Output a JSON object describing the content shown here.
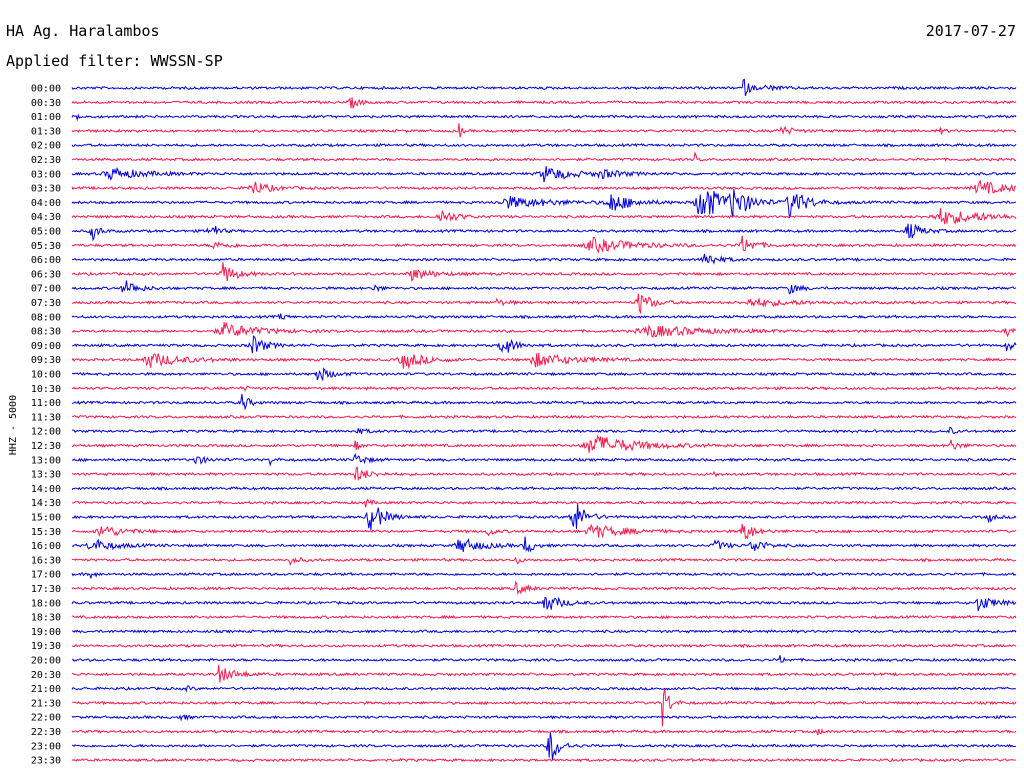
{
  "header": {
    "station": "HA Ag. Haralambos",
    "filter": "Applied filter: WWSSN-SP",
    "date": "2017-07-27"
  },
  "colors": {
    "blue": "#0000e6",
    "red": "#ff1a4d"
  },
  "chart_data": {
    "type": "line",
    "ylabel": "HHZ - 5000",
    "rows": [
      {
        "time": "00:00",
        "color": "blue",
        "events": [
          {
            "t": 0.71,
            "a": 12,
            "w": 0.006
          },
          {
            "t": 0.735,
            "a": 3,
            "w": 0.012
          }
        ]
      },
      {
        "time": "00:30",
        "color": "red",
        "events": [
          {
            "t": 0.295,
            "a": 7,
            "w": 0.007
          }
        ]
      },
      {
        "time": "01:00",
        "color": "blue",
        "events": [
          {
            "t": 0.005,
            "a": 3,
            "w": 0.004
          }
        ]
      },
      {
        "time": "01:30",
        "color": "red",
        "events": [
          {
            "t": 0.41,
            "a": 12,
            "w": 0.002
          },
          {
            "t": 0.75,
            "a": 5,
            "w": 0.012
          },
          {
            "t": 0.92,
            "a": 3,
            "w": 0.004
          }
        ]
      },
      {
        "time": "02:00",
        "color": "blue",
        "events": []
      },
      {
        "time": "02:30",
        "color": "red",
        "events": [
          {
            "t": 0.66,
            "a": 6,
            "w": 0.002
          },
          {
            "t": 0.44,
            "a": 3,
            "w": 0.002
          }
        ]
      },
      {
        "time": "03:00",
        "color": "blue",
        "events": [
          {
            "t": 0.04,
            "a": 6,
            "w": 0.03
          },
          {
            "t": 0.5,
            "a": 8,
            "w": 0.025
          },
          {
            "t": 0.56,
            "a": 4,
            "w": 0.02
          }
        ]
      },
      {
        "time": "03:30",
        "color": "red",
        "events": [
          {
            "t": 0.19,
            "a": 8,
            "w": 0.015
          },
          {
            "t": 0.96,
            "a": 7,
            "w": 0.03
          }
        ]
      },
      {
        "time": "04:00",
        "color": "blue",
        "events": [
          {
            "t": 0.46,
            "a": 6,
            "w": 0.04
          },
          {
            "t": 0.57,
            "a": 10,
            "w": 0.02
          },
          {
            "t": 0.665,
            "a": 22,
            "w": 0.02
          },
          {
            "t": 0.7,
            "a": 14,
            "w": 0.015
          },
          {
            "t": 0.76,
            "a": 16,
            "w": 0.015
          }
        ]
      },
      {
        "time": "04:30",
        "color": "red",
        "events": [
          {
            "t": 0.39,
            "a": 7,
            "w": 0.015
          },
          {
            "t": 0.92,
            "a": 8,
            "w": 0.04
          }
        ]
      },
      {
        "time": "05:00",
        "color": "blue",
        "events": [
          {
            "t": 0.02,
            "a": 12,
            "w": 0.006
          },
          {
            "t": 0.145,
            "a": 14,
            "w": 0.006
          },
          {
            "t": 0.885,
            "a": 10,
            "w": 0.012
          }
        ]
      },
      {
        "time": "05:30",
        "color": "red",
        "events": [
          {
            "t": 0.55,
            "a": 7,
            "w": 0.04
          },
          {
            "t": 0.71,
            "a": 9,
            "w": 0.012
          },
          {
            "t": 0.15,
            "a": 3,
            "w": 0.02
          }
        ]
      },
      {
        "time": "06:00",
        "color": "blue",
        "events": [
          {
            "t": 0.67,
            "a": 8,
            "w": 0.012
          }
        ]
      },
      {
        "time": "06:30",
        "color": "red",
        "events": [
          {
            "t": 0.16,
            "a": 11,
            "w": 0.012
          },
          {
            "t": 0.36,
            "a": 6,
            "w": 0.02
          }
        ]
      },
      {
        "time": "07:00",
        "color": "blue",
        "events": [
          {
            "t": 0.055,
            "a": 9,
            "w": 0.012
          },
          {
            "t": 0.32,
            "a": 4,
            "w": 0.006
          },
          {
            "t": 0.76,
            "a": 5,
            "w": 0.01
          }
        ]
      },
      {
        "time": "07:30",
        "color": "red",
        "events": [
          {
            "t": 0.6,
            "a": 12,
            "w": 0.012
          },
          {
            "t": 0.45,
            "a": 3,
            "w": 0.01
          },
          {
            "t": 0.72,
            "a": 4,
            "w": 0.04
          }
        ]
      },
      {
        "time": "08:00",
        "color": "blue",
        "events": [
          {
            "t": 0.22,
            "a": 4,
            "w": 0.005
          }
        ]
      },
      {
        "time": "08:30",
        "color": "red",
        "events": [
          {
            "t": 0.16,
            "a": 8,
            "w": 0.03
          },
          {
            "t": 0.61,
            "a": 6,
            "w": 0.05
          },
          {
            "t": 0.99,
            "a": 5,
            "w": 0.01
          }
        ]
      },
      {
        "time": "09:00",
        "color": "blue",
        "events": [
          {
            "t": 0.19,
            "a": 11,
            "w": 0.012
          },
          {
            "t": 0.455,
            "a": 13,
            "w": 0.01
          },
          {
            "t": 0.99,
            "a": 6,
            "w": 0.006
          }
        ]
      },
      {
        "time": "09:30",
        "color": "red",
        "events": [
          {
            "t": 0.08,
            "a": 8,
            "w": 0.03
          },
          {
            "t": 0.35,
            "a": 9,
            "w": 0.02
          },
          {
            "t": 0.49,
            "a": 7,
            "w": 0.035
          }
        ]
      },
      {
        "time": "10:00",
        "color": "blue",
        "events": [
          {
            "t": 0.26,
            "a": 8,
            "w": 0.012
          }
        ]
      },
      {
        "time": "10:30",
        "color": "red",
        "events": [
          {
            "t": 0.18,
            "a": 3,
            "w": 0.005
          }
        ]
      },
      {
        "time": "11:00",
        "color": "blue",
        "events": [
          {
            "t": 0.18,
            "a": 10,
            "w": 0.006
          }
        ]
      },
      {
        "time": "11:30",
        "color": "red",
        "events": []
      },
      {
        "time": "12:00",
        "color": "blue",
        "events": [
          {
            "t": 0.3,
            "a": 3,
            "w": 0.01
          },
          {
            "t": 0.93,
            "a": 4,
            "w": 0.004
          }
        ]
      },
      {
        "time": "12:30",
        "color": "red",
        "events": [
          {
            "t": 0.55,
            "a": 11,
            "w": 0.04
          },
          {
            "t": 0.3,
            "a": 5,
            "w": 0.004
          },
          {
            "t": 0.93,
            "a": 6,
            "w": 0.008
          }
        ]
      },
      {
        "time": "13:00",
        "color": "blue",
        "events": [
          {
            "t": 0.13,
            "a": 5,
            "w": 0.01
          },
          {
            "t": 0.21,
            "a": 5,
            "w": 0.004
          },
          {
            "t": 0.3,
            "a": 6,
            "w": 0.01
          }
        ]
      },
      {
        "time": "13:30",
        "color": "red",
        "events": [
          {
            "t": 0.3,
            "a": 8,
            "w": 0.012
          },
          {
            "t": 0.68,
            "a": 3,
            "w": 0.003
          }
        ]
      },
      {
        "time": "14:00",
        "color": "blue",
        "events": []
      },
      {
        "time": "14:30",
        "color": "red",
        "events": [
          {
            "t": 0.31,
            "a": 5,
            "w": 0.005
          }
        ]
      },
      {
        "time": "15:00",
        "color": "blue",
        "events": [
          {
            "t": 0.315,
            "a": 18,
            "w": 0.012
          },
          {
            "t": 0.53,
            "a": 22,
            "w": 0.01
          },
          {
            "t": 0.97,
            "a": 6,
            "w": 0.005
          }
        ]
      },
      {
        "time": "15:30",
        "color": "red",
        "events": [
          {
            "t": 0.03,
            "a": 7,
            "w": 0.02
          },
          {
            "t": 0.44,
            "a": 9,
            "w": 0.004
          },
          {
            "t": 0.55,
            "a": 7,
            "w": 0.03
          },
          {
            "t": 0.71,
            "a": 12,
            "w": 0.01
          }
        ]
      },
      {
        "time": "16:00",
        "color": "blue",
        "events": [
          {
            "t": 0.02,
            "a": 7,
            "w": 0.02
          },
          {
            "t": 0.41,
            "a": 8,
            "w": 0.02
          },
          {
            "t": 0.48,
            "a": 12,
            "w": 0.006
          },
          {
            "t": 0.68,
            "a": 6,
            "w": 0.01
          },
          {
            "t": 0.72,
            "a": 9,
            "w": 0.01
          }
        ]
      },
      {
        "time": "16:30",
        "color": "red",
        "events": [
          {
            "t": 0.23,
            "a": 4,
            "w": 0.01
          },
          {
            "t": 0.47,
            "a": 5,
            "w": 0.004
          }
        ]
      },
      {
        "time": "17:00",
        "color": "blue",
        "events": [
          {
            "t": 0.02,
            "a": 4,
            "w": 0.004
          }
        ]
      },
      {
        "time": "17:30",
        "color": "red",
        "events": [
          {
            "t": 0.47,
            "a": 6,
            "w": 0.01
          }
        ]
      },
      {
        "time": "18:00",
        "color": "blue",
        "events": [
          {
            "t": 0.5,
            "a": 10,
            "w": 0.015
          },
          {
            "t": 0.96,
            "a": 8,
            "w": 0.015
          }
        ]
      },
      {
        "time": "18:30",
        "color": "red",
        "events": []
      },
      {
        "time": "19:00",
        "color": "blue",
        "events": []
      },
      {
        "time": "19:30",
        "color": "red",
        "events": []
      },
      {
        "time": "20:00",
        "color": "blue",
        "events": [
          {
            "t": 0.75,
            "a": 4,
            "w": 0.004
          }
        ]
      },
      {
        "time": "20:30",
        "color": "red",
        "events": [
          {
            "t": 0.155,
            "a": 9,
            "w": 0.015
          }
        ]
      },
      {
        "time": "21:00",
        "color": "blue",
        "events": [
          {
            "t": 0.12,
            "a": 3,
            "w": 0.005
          }
        ]
      },
      {
        "time": "21:30",
        "color": "red",
        "events": [
          {
            "t": 0.625,
            "a": 26,
            "w": 0.006
          }
        ]
      },
      {
        "time": "22:00",
        "color": "blue",
        "events": [
          {
            "t": 0.115,
            "a": 6,
            "w": 0.004
          }
        ]
      },
      {
        "time": "22:30",
        "color": "red",
        "events": [
          {
            "t": 0.79,
            "a": 3,
            "w": 0.005
          }
        ]
      },
      {
        "time": "23:00",
        "color": "blue",
        "events": [
          {
            "t": 0.505,
            "a": 24,
            "w": 0.008
          }
        ]
      },
      {
        "time": "23:30",
        "color": "red",
        "events": []
      }
    ]
  }
}
